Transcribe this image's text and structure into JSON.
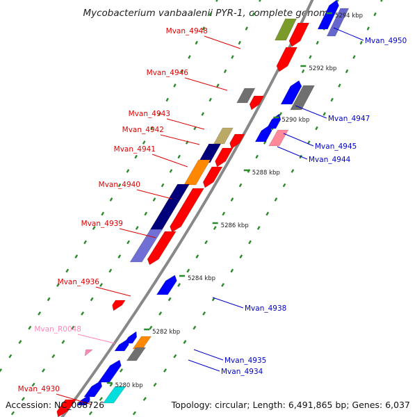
{
  "title": "Mycobacterium vanbaalenii PYR-1, complete genome",
  "footer": {
    "accession": "Accession: NC_008726",
    "summary": "Topology: circular; Length: 6,491,865 bp; Genes: 6,037"
  },
  "colors": {
    "left_label": "#dd0000",
    "right_label": "#0000cc",
    "rna_label": "#ff88bb",
    "backbone": "#888888",
    "tick_dots": "#2a8a2a"
  },
  "ticks": [
    {
      "label": "5280 kbp"
    },
    {
      "label": "5282 kbp"
    },
    {
      "label": "5284 kbp"
    },
    {
      "label": "5286 kbp"
    },
    {
      "label": "5288 kbp"
    },
    {
      "label": "5290 kbp"
    },
    {
      "label": "5292 kbp"
    },
    {
      "label": "5294 kbp"
    }
  ],
  "gene_labels_left": [
    {
      "label": "Mvan_4948"
    },
    {
      "label": "Mvan_4946"
    },
    {
      "label": "Mvan_4943"
    },
    {
      "label": "Mvan_4942"
    },
    {
      "label": "Mvan_4941"
    },
    {
      "label": "Mvan_4940"
    },
    {
      "label": "Mvan_4939"
    },
    {
      "label": "Mvan_4936"
    },
    {
      "label": "Mvan_R0048"
    },
    {
      "label": "Mvan_4930"
    }
  ],
  "gene_labels_right": [
    {
      "label": "Mvan_4950"
    },
    {
      "label": "Mvan_4947"
    },
    {
      "label": "Mvan_4945"
    },
    {
      "label": "Mvan_4944"
    },
    {
      "label": "Mvan_4938"
    },
    {
      "label": "Mvan_4935"
    },
    {
      "label": "Mvan_4934"
    }
  ]
}
